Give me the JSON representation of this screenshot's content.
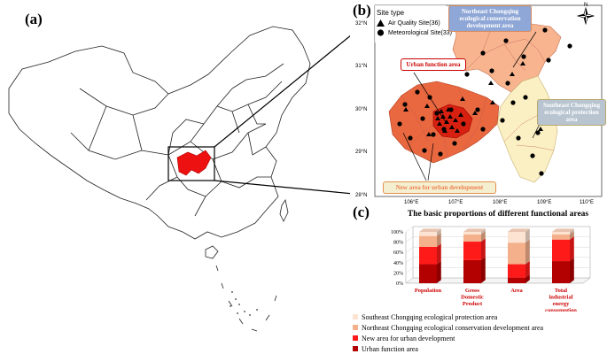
{
  "panels": {
    "a": "(a)",
    "b": "(b)",
    "c": "(c)"
  },
  "legend": {
    "title": "Site type",
    "air": "Air Quality Site(36)",
    "met": "Meteorological Site(33)"
  },
  "lat_ticks": [
    "32°N",
    "31°N",
    "30°N",
    "29°N",
    "28°N"
  ],
  "lon_ticks": [
    "106°E",
    "107°E",
    "108°E",
    "109°E",
    "110°E"
  ],
  "callouts": {
    "ufa": "Urban function area",
    "nec": "Northeast Chongqing ecological conservation development area",
    "sec": "Southeast Chongqing ecological protection area",
    "new": "New area for urban development"
  },
  "compass": "N",
  "chart": {
    "title": "The basic proportions of different functional areas",
    "y_ticks": [
      "100%",
      "80%",
      "60%",
      "40%",
      "20%",
      "0%"
    ],
    "categories": [
      "Population",
      "Gross Domestic Product",
      "Area",
      "Total industrial energy consumption"
    ],
    "legend": [
      "Southeast Chongqing ecological protection area",
      "Northeast Chongqing ecological conservation development area",
      "New area for urban development",
      "Urban function area"
    ]
  },
  "chart_data": {
    "type": "bar",
    "stacked": true,
    "categories": [
      "Population",
      "Gross Domestic Product",
      "Area",
      "Total industrial energy consumption"
    ],
    "series": [
      {
        "name": "Urban function area",
        "values": [
          37,
          45,
          11,
          43
        ]
      },
      {
        "name": "New area for urban development",
        "values": [
          34,
          36,
          26,
          42
        ]
      },
      {
        "name": "Northeast Chongqing ecological conservation development area",
        "values": [
          21,
          14,
          42,
          10
        ]
      },
      {
        "name": "Southeast Chongqing ecological protection area",
        "values": [
          8,
          5,
          21,
          5
        ]
      }
    ],
    "ylim": [
      0,
      100
    ],
    "colors": [
      "#b30000",
      "#ff1a1a",
      "#f4b08a",
      "#fde3d2"
    ]
  }
}
